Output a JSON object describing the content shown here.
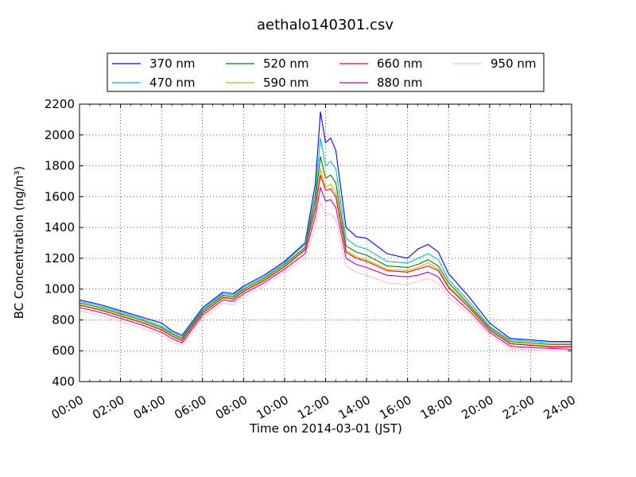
{
  "chart_data": {
    "type": "line",
    "title": "aethalo140301.csv",
    "xlabel": "Time on 2014-03-01 (JST)",
    "ylabel": "BC Concentration (ng/m³)",
    "xlim": [
      "00:00",
      "24:00"
    ],
    "ylim": [
      400,
      2200
    ],
    "x_ticks": [
      "00:00",
      "02:00",
      "04:00",
      "06:00",
      "08:00",
      "10:00",
      "12:00",
      "14:00",
      "16:00",
      "18:00",
      "20:00",
      "22:00",
      "24:00"
    ],
    "y_ticks": [
      "400",
      "600",
      "800",
      "1000",
      "1200",
      "1400",
      "1600",
      "1800",
      "2000",
      "2200"
    ],
    "grid": true,
    "legend_position": "top",
    "x": [
      "00:00",
      "01:00",
      "02:00",
      "03:00",
      "04:00",
      "04:30",
      "05:00",
      "06:00",
      "07:00",
      "07:30",
      "08:00",
      "09:00",
      "10:00",
      "11:00",
      "11:30",
      "11:45",
      "12:00",
      "12:15",
      "12:30",
      "13:00",
      "13:30",
      "14:00",
      "15:00",
      "16:00",
      "16:30",
      "17:00",
      "17:30",
      "18:00",
      "19:00",
      "20:00",
      "21:00",
      "22:00",
      "23:00",
      "24:00"
    ],
    "series": [
      {
        "name": "370 nm",
        "color": "#0000ff",
        "values": [
          930,
          900,
          860,
          820,
          780,
          730,
          700,
          880,
          980,
          970,
          1020,
          1090,
          1180,
          1300,
          1680,
          2150,
          1950,
          1980,
          1900,
          1400,
          1340,
          1330,
          1230,
          1200,
          1260,
          1290,
          1240,
          1100,
          950,
          780,
          680,
          670,
          660,
          660
        ]
      },
      {
        "name": "470 nm",
        "color": "#00bfbf",
        "values": [
          920,
          890,
          850,
          810,
          760,
          720,
          690,
          870,
          970,
          960,
          1010,
          1080,
          1170,
          1290,
          1620,
          1980,
          1800,
          1830,
          1780,
          1330,
          1280,
          1260,
          1180,
          1170,
          1200,
          1230,
          1190,
          1060,
          920,
          760,
          670,
          660,
          650,
          650
        ]
      },
      {
        "name": "520 nm",
        "color": "#008000",
        "values": [
          910,
          880,
          840,
          800,
          750,
          710,
          680,
          860,
          960,
          950,
          1000,
          1070,
          1160,
          1270,
          1580,
          1860,
          1720,
          1740,
          1690,
          1280,
          1240,
          1220,
          1150,
          1140,
          1160,
          1190,
          1150,
          1040,
          900,
          750,
          660,
          650,
          640,
          640
        ]
      },
      {
        "name": "590 nm",
        "color": "#bfbf00",
        "values": [
          900,
          870,
          830,
          790,
          740,
          700,
          670,
          850,
          950,
          940,
          990,
          1060,
          1150,
          1260,
          1540,
          1780,
          1660,
          1680,
          1630,
          1250,
          1210,
          1190,
          1130,
          1120,
          1140,
          1170,
          1130,
          1020,
          890,
          740,
          650,
          640,
          630,
          630
        ]
      },
      {
        "name": "660 nm",
        "color": "#ff0000",
        "values": [
          895,
          865,
          825,
          785,
          735,
          695,
          665,
          845,
          945,
          935,
          985,
          1055,
          1145,
          1255,
          1520,
          1740,
          1640,
          1650,
          1600,
          1240,
          1200,
          1180,
          1120,
          1110,
          1130,
          1150,
          1120,
          1010,
          880,
          735,
          645,
          635,
          625,
          625
        ]
      },
      {
        "name": "880 nm",
        "color": "#bf00bf",
        "values": [
          880,
          850,
          810,
          770,
          720,
          680,
          650,
          830,
          930,
          920,
          970,
          1040,
          1130,
          1230,
          1470,
          1660,
          1570,
          1580,
          1530,
          1200,
          1160,
          1140,
          1090,
          1080,
          1090,
          1110,
          1080,
          980,
          860,
          720,
          630,
          620,
          615,
          610
        ]
      },
      {
        "name": "950 nm",
        "color": "#ffc0cb",
        "values": [
          860,
          830,
          790,
          750,
          700,
          660,
          630,
          810,
          910,
          900,
          950,
          1020,
          1110,
          1200,
          1400,
          1560,
          1480,
          1490,
          1450,
          1150,
          1110,
          1090,
          1040,
          1030,
          1050,
          1070,
          1040,
          950,
          840,
          700,
          615,
          605,
          600,
          600
        ]
      }
    ]
  }
}
